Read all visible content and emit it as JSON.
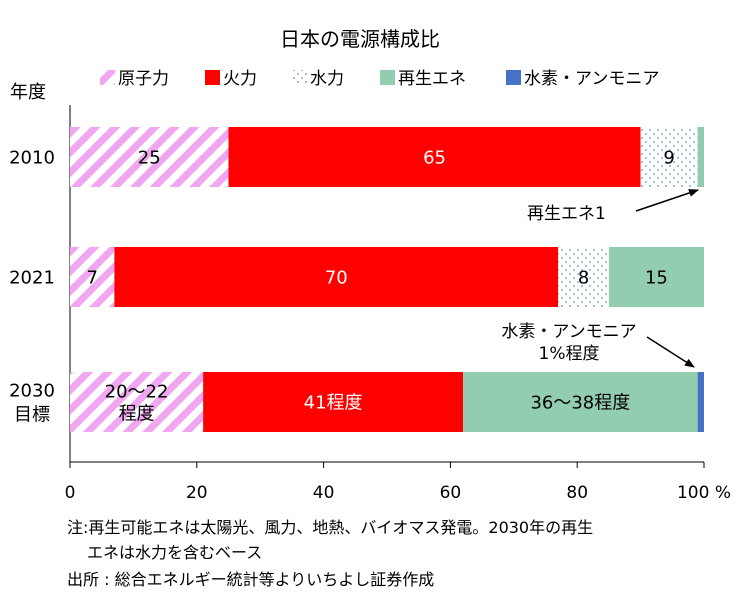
{
  "chart_data": {
    "type": "bar",
    "orientation": "horizontal",
    "stacked": true,
    "title": "日本の電源構成比",
    "ylabel": "年度",
    "xlim": [
      0,
      100
    ],
    "xticks": [
      "0",
      "20",
      "40",
      "60",
      "80",
      "100 %"
    ],
    "grid": false,
    "legend_position": "top",
    "categories": [
      [
        "2010"
      ],
      [
        "2021"
      ],
      [
        "2030",
        "目標"
      ]
    ],
    "series": [
      {
        "name": "原子力",
        "color": "#f0a6f0",
        "pattern": "diagonal-stripes",
        "values": [
          25,
          7,
          21
        ],
        "labels": [
          "25",
          "7",
          "20～22\n程度"
        ]
      },
      {
        "name": "火力",
        "color": "#ff0000",
        "pattern": "solid",
        "values": [
          65,
          70,
          41
        ],
        "labels": [
          "65",
          "70",
          "41程度"
        ]
      },
      {
        "name": "水力",
        "color": "#9db8dc",
        "pattern": "dots",
        "values": [
          9,
          8,
          0
        ],
        "labels": [
          "9",
          "8",
          ""
        ]
      },
      {
        "name": "再生エネ",
        "color": "#93cdb0",
        "pattern": "solid",
        "values": [
          1,
          15,
          37
        ],
        "labels": [
          "",
          "15",
          "36～38程度"
        ]
      },
      {
        "name": "水素・アンモニア",
        "color": "#4472c4",
        "pattern": "solid",
        "values": [
          0,
          0,
          1
        ],
        "labels": [
          "",
          "",
          ""
        ]
      }
    ],
    "annotations": [
      {
        "text": "再生エネ1",
        "target": "2010 再生エネ"
      },
      {
        "text": "水素・アンモニア\n1%程度",
        "target": "2030 水素・アンモニア"
      }
    ]
  },
  "footnotes": {
    "note_line1": "注:再生可能エネは太陽光、風力、地熱、バイオマス発電。2030年の再生",
    "note_line2": "エネは水力を含むベース",
    "source": "出所 : 総合エネルギー統計等よりいちよし証券作成"
  }
}
